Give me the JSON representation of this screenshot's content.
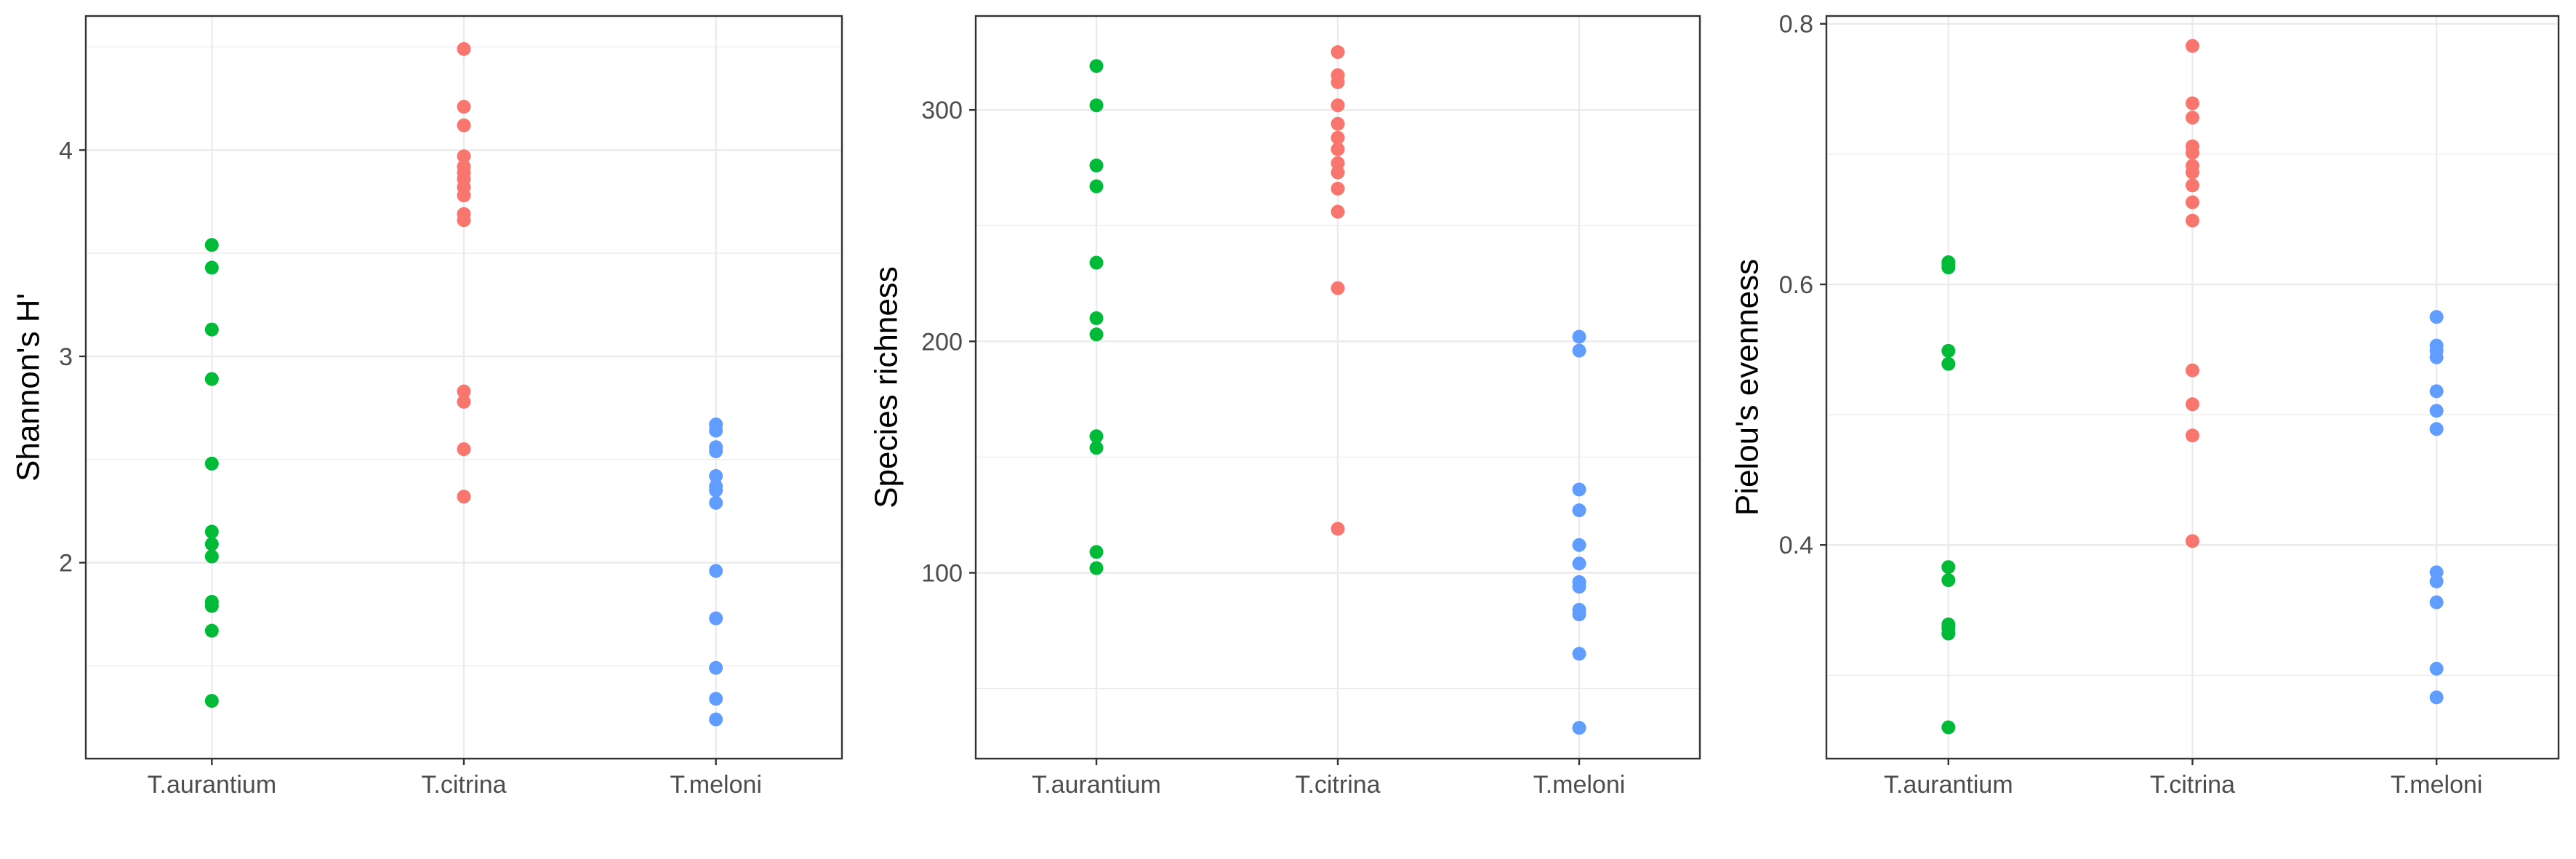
{
  "colors": {
    "T.aurantium": "#00BA38",
    "T.citrina": "#F8766D",
    "T.meloni": "#619CFF",
    "grid": "#EBEBEB",
    "border": "#333333",
    "tick_text": "#4D4D4D"
  },
  "chart_data": [
    {
      "type": "scatter",
      "ylabel": "Shannon's H'",
      "categories": [
        "T.aurantium",
        "T.citrina",
        "T.meloni"
      ],
      "ylim": [
        1.05,
        4.65
      ],
      "yticks": [
        2,
        3,
        4
      ],
      "yminor": [
        1.5,
        2.5,
        3.5,
        4.5
      ],
      "grid": true,
      "legend": "none",
      "series": [
        {
          "category": "T.aurantium",
          "values": [
            3.54,
            3.43,
            3.13,
            2.89,
            2.48,
            2.15,
            2.09,
            2.03,
            1.81,
            1.79,
            1.67,
            1.33
          ]
        },
        {
          "category": "T.citrina",
          "values": [
            4.49,
            4.21,
            4.12,
            3.97,
            3.92,
            3.89,
            3.86,
            3.82,
            3.78,
            3.69,
            3.66,
            2.83,
            2.78,
            2.55,
            2.32
          ]
        },
        {
          "category": "T.meloni",
          "values": [
            2.67,
            2.64,
            2.56,
            2.54,
            2.42,
            2.37,
            2.35,
            2.29,
            1.96,
            1.73,
            1.49,
            1.34,
            1.24
          ]
        }
      ]
    },
    {
      "type": "scatter",
      "ylabel": "Species richness",
      "categories": [
        "T.aurantium",
        "T.citrina",
        "T.meloni"
      ],
      "ylim": [
        19.7,
        340.6
      ],
      "yticks": [
        100,
        200,
        300
      ],
      "yminor": [
        50,
        150,
        250
      ],
      "grid": true,
      "legend": "none",
      "series": [
        {
          "category": "T.aurantium",
          "values": [
            319,
            302,
            276,
            267,
            234,
            210,
            203,
            159,
            154,
            109,
            102
          ]
        },
        {
          "category": "T.citrina",
          "values": [
            325,
            315,
            312,
            302,
            294,
            288,
            283,
            277,
            273,
            266,
            256,
            223,
            119
          ]
        },
        {
          "category": "T.meloni",
          "values": [
            202,
            196,
            136,
            127,
            112,
            104,
            96,
            94,
            84,
            82,
            65,
            33
          ]
        }
      ]
    },
    {
      "type": "scatter",
      "ylabel": "Pielou's evenness",
      "categories": [
        "T.aurantium",
        "T.citrina",
        "T.meloni"
      ],
      "ylim": [
        0.236,
        0.806
      ],
      "yticks": [
        0.4,
        0.6,
        0.8
      ],
      "yminor": [
        0.3,
        0.5,
        0.7
      ],
      "grid": true,
      "legend": "none",
      "series": [
        {
          "category": "T.aurantium",
          "values": [
            0.617,
            0.615,
            0.613,
            0.549,
            0.539,
            0.383,
            0.373,
            0.339,
            0.336,
            0.332,
            0.26
          ]
        },
        {
          "category": "T.citrina",
          "values": [
            0.783,
            0.739,
            0.728,
            0.706,
            0.701,
            0.691,
            0.686,
            0.676,
            0.663,
            0.649,
            0.534,
            0.508,
            0.484,
            0.403
          ]
        },
        {
          "category": "T.meloni",
          "values": [
            0.575,
            0.553,
            0.549,
            0.544,
            0.518,
            0.503,
            0.489,
            0.379,
            0.372,
            0.356,
            0.305,
            0.283
          ]
        }
      ]
    }
  ]
}
